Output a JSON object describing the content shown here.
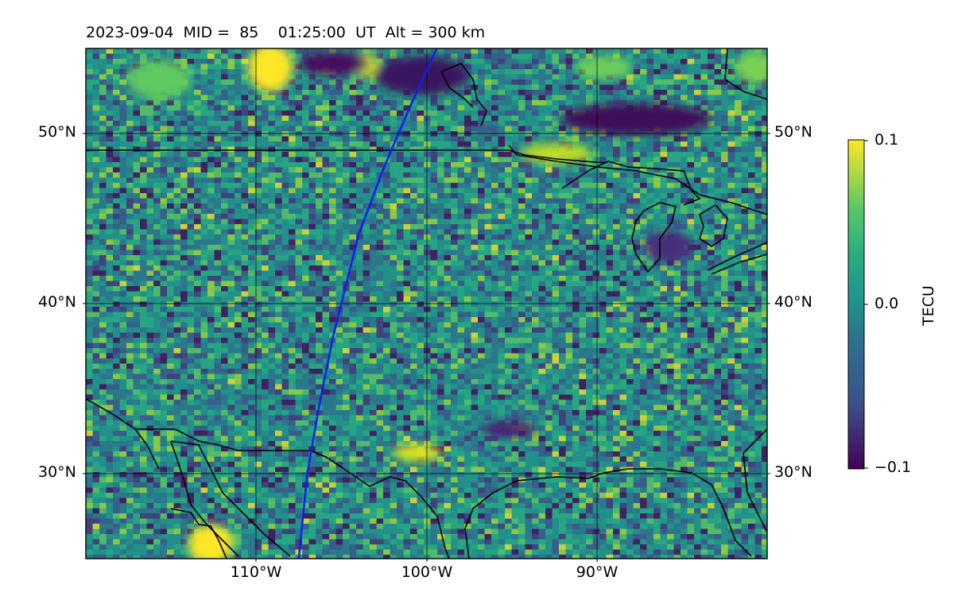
{
  "title": {
    "date": "2023-09-04",
    "mid_label": "MID =",
    "mid": "85",
    "time": "01:25:00",
    "time_unit": "UT",
    "alt_text": "Alt = 300 km"
  },
  "map": {
    "lon_range": [
      -120,
      -80
    ],
    "lat_range": [
      25,
      55
    ],
    "lat_ticks": [
      {
        "value": 50,
        "label": "50°N"
      },
      {
        "value": 40,
        "label": "40°N"
      },
      {
        "value": 30,
        "label": "30°N"
      }
    ],
    "lon_ticks": [
      {
        "value": -110,
        "label": "110°W"
      },
      {
        "value": -100,
        "label": "100°W"
      },
      {
        "value": -90,
        "label": "90°W"
      }
    ],
    "grid": true,
    "track_color": "#0a1ff0",
    "track": [
      [
        -107.5,
        25
      ],
      [
        -107.0,
        30
      ],
      [
        -106.3,
        34
      ],
      [
        -105.5,
        38
      ],
      [
        -104.0,
        44
      ],
      [
        -102.5,
        48
      ],
      [
        -101.0,
        51.5
      ],
      [
        -99.4,
        55
      ]
    ]
  },
  "colorbar": {
    "label": "TECU",
    "min": -0.1,
    "max": 0.1,
    "ticks": [
      {
        "value": 0.1,
        "label": "0.1"
      },
      {
        "value": 0.0,
        "label": "0.0"
      },
      {
        "value": -0.1,
        "label": "−0.1"
      }
    ],
    "colormap": "viridis"
  }
}
